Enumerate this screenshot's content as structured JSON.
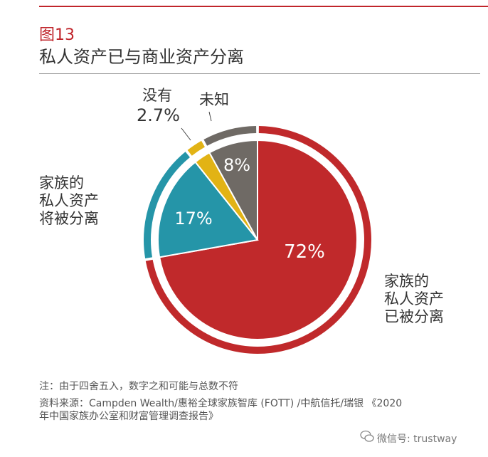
{
  "figure": {
    "number": "图13",
    "title": "私人资产已与商业资产分离"
  },
  "colors": {
    "accent": "#c0252b",
    "red": "#c0292b",
    "teal": "#2595a8",
    "yellow": "#e2b315",
    "gray": "#6f6a65"
  },
  "chart_data": {
    "type": "pie",
    "title": "私人资产已与商业资产分离",
    "slices": [
      {
        "label": "家族的\n私人资产\n已被分离",
        "value": 72,
        "value_label": "72%",
        "color": "#c0292b"
      },
      {
        "label": "家族的\n私人资产\n将被分离",
        "value": 17,
        "value_label": "17%",
        "color": "#2595a8"
      },
      {
        "label": "没有",
        "value": 2.7,
        "value_label": "2.7%",
        "color": "#e2b315"
      },
      {
        "label": "未知",
        "value": 8,
        "value_label": "8%",
        "color": "#6f6a65"
      }
    ],
    "start": "12 o'clock",
    "direction": "clockwise"
  },
  "notes": {
    "note": "注：由于四舍五入，数字之和可能与总数不符",
    "source_line1": "资料来源：Campden Wealth/惠裕全球家族智库 (FOTT) /中航信托/瑞银 《2020",
    "source_line2": "年中国家族办公室和财富管理调查报告》"
  },
  "watermark": "微信号: trustway"
}
